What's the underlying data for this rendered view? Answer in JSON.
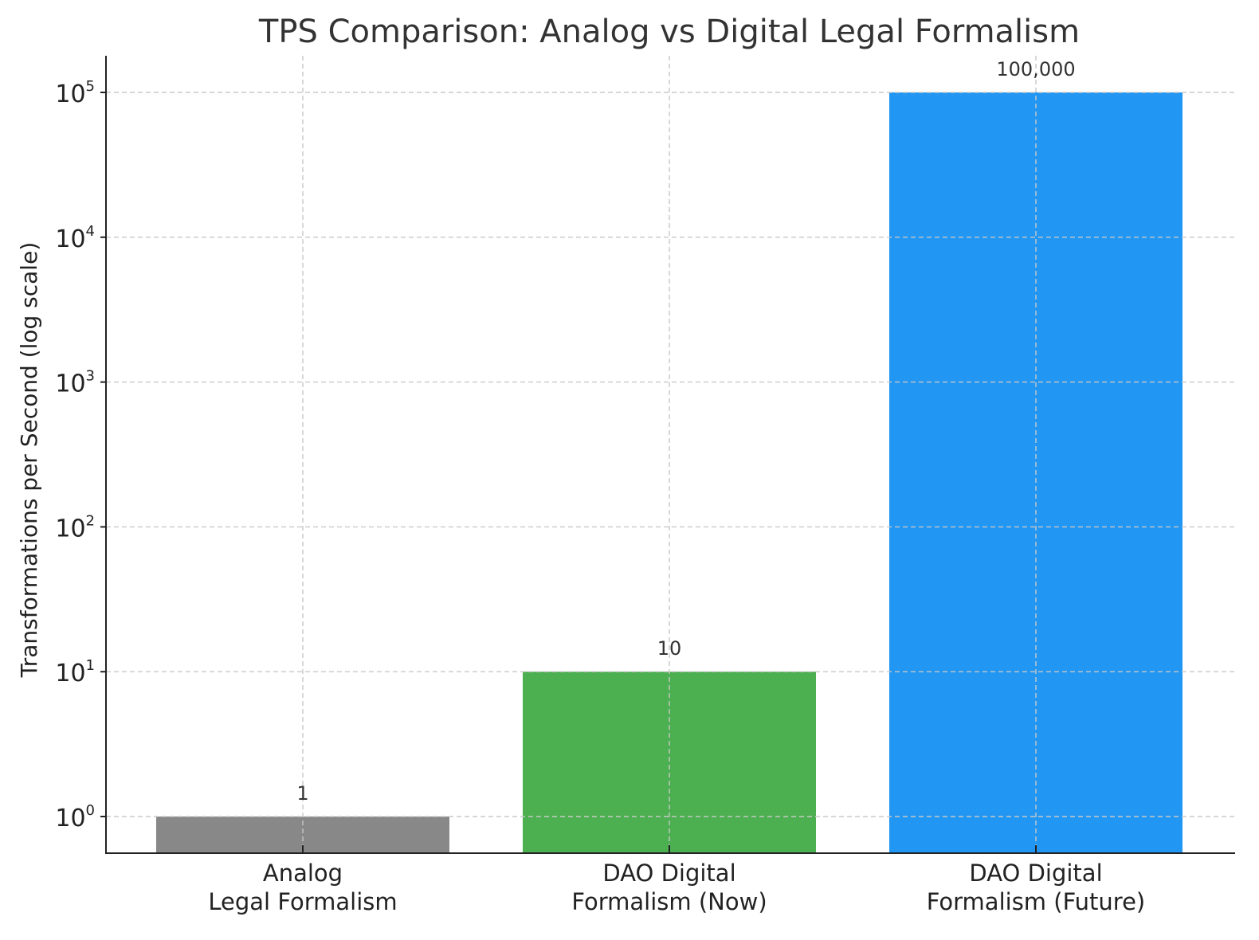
{
  "chart_data": {
    "type": "bar",
    "title": "TPS Comparison: Analog vs Digital Legal Formalism",
    "xlabel": "",
    "ylabel": "Transformations per Second (log scale)",
    "yscale": "log",
    "grid": true,
    "categories": [
      [
        "Analog",
        "Legal Formalism"
      ],
      [
        "DAO Digital",
        "Formalism (Now)"
      ],
      [
        "DAO Digital",
        "Formalism (Future)"
      ]
    ],
    "values": [
      1,
      10,
      100000
    ],
    "data_labels": [
      "1",
      "10",
      "100,000"
    ],
    "colors": [
      "#888888",
      "#4caf50",
      "#2196f3"
    ],
    "yticks": [
      {
        "base": "10",
        "exp": "0"
      },
      {
        "base": "10",
        "exp": "1"
      },
      {
        "base": "10",
        "exp": "2"
      },
      {
        "base": "10",
        "exp": "3"
      },
      {
        "base": "10",
        "exp": "4"
      },
      {
        "base": "10",
        "exp": "5"
      }
    ]
  }
}
